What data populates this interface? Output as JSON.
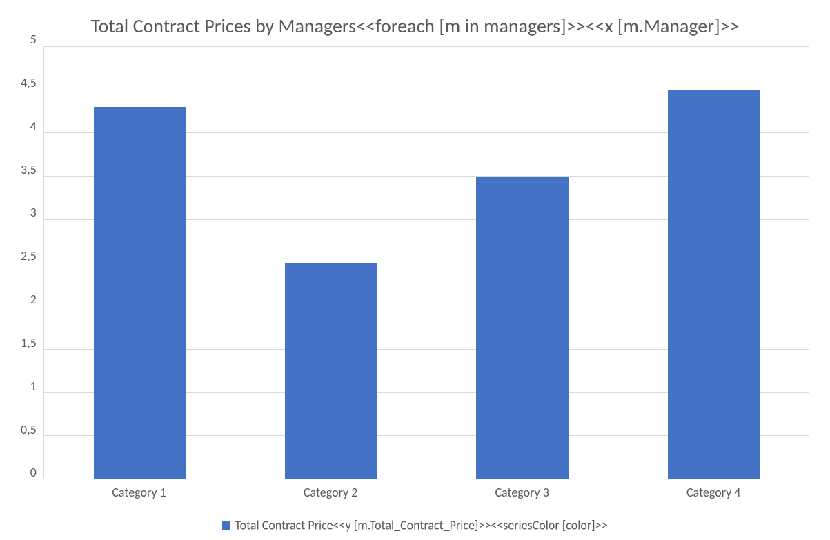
{
  "chart": {
    "type": "bar",
    "title": "Total Contract Prices by Managers<<foreach [m in managers]>><<x [m.Manager]>>",
    "title_fontsize": 28,
    "title_color": "#595959",
    "categories": [
      "Category 1",
      "Category 2",
      "Category 3",
      "Category 4"
    ],
    "values": [
      4.3,
      2.5,
      3.5,
      4.5
    ],
    "bar_color": "#4472c4",
    "bar_width": 0.48,
    "ylim": [
      0,
      5
    ],
    "ytick_step": 0.5,
    "ytick_labels": [
      "0",
      "0,5",
      "1",
      "1,5",
      "2",
      "2,5",
      "3",
      "3,5",
      "4",
      "4,5",
      "5"
    ],
    "axis_fontsize": 18,
    "axis_color": "#595959",
    "grid_color": "#d9d9d9",
    "background_color": "#ffffff",
    "legend": {
      "label": "Total Contract Price<<y [m.Total_Contract_Price]>><<seriesColor [color]>>",
      "swatch_color": "#4472c4",
      "swatch_size": 12,
      "fontsize": 18,
      "position": "bottom-center"
    }
  }
}
